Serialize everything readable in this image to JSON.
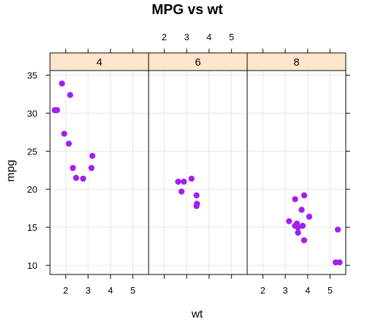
{
  "chart_data": {
    "type": "scatter",
    "title": "MPG vs wt",
    "xlabel": "wt",
    "ylabel": "mpg",
    "xlim": [
      1.3,
      5.7
    ],
    "ylim": [
      8.8,
      35.6
    ],
    "x_ticks": [
      2,
      3,
      4,
      5
    ],
    "y_ticks": [
      10,
      15,
      20,
      25,
      30,
      35
    ],
    "grid": true,
    "point_color": "#a020f0",
    "strip_color": "#ffe5cc",
    "panels": [
      {
        "label": "4",
        "points": [
          {
            "x": 1.615,
            "y": 30.4
          },
          {
            "x": 1.835,
            "y": 33.9
          },
          {
            "x": 1.513,
            "y": 30.4
          },
          {
            "x": 1.935,
            "y": 27.3
          },
          {
            "x": 2.14,
            "y": 26.0
          },
          {
            "x": 2.2,
            "y": 32.4
          },
          {
            "x": 2.32,
            "y": 22.8
          },
          {
            "x": 2.465,
            "y": 21.5
          },
          {
            "x": 2.78,
            "y": 21.4
          },
          {
            "x": 3.15,
            "y": 22.8
          },
          {
            "x": 3.19,
            "y": 24.4
          }
        ]
      },
      {
        "label": "6",
        "points": [
          {
            "x": 2.62,
            "y": 21.0
          },
          {
            "x": 2.77,
            "y": 19.7
          },
          {
            "x": 2.875,
            "y": 21.0
          },
          {
            "x": 3.215,
            "y": 21.4
          },
          {
            "x": 3.44,
            "y": 19.2
          },
          {
            "x": 3.44,
            "y": 17.8
          },
          {
            "x": 3.46,
            "y": 18.1
          }
        ]
      },
      {
        "label": "8",
        "points": [
          {
            "x": 3.17,
            "y": 15.8
          },
          {
            "x": 3.44,
            "y": 18.7
          },
          {
            "x": 3.435,
            "y": 15.2
          },
          {
            "x": 3.52,
            "y": 15.5
          },
          {
            "x": 3.57,
            "y": 14.3
          },
          {
            "x": 3.57,
            "y": 15.0
          },
          {
            "x": 3.73,
            "y": 17.3
          },
          {
            "x": 3.78,
            "y": 15.2
          },
          {
            "x": 3.84,
            "y": 13.3
          },
          {
            "x": 3.845,
            "y": 19.2
          },
          {
            "x": 4.07,
            "y": 16.4
          },
          {
            "x": 5.25,
            "y": 10.4
          },
          {
            "x": 5.345,
            "y": 14.7
          },
          {
            "x": 5.424,
            "y": 10.4
          }
        ]
      }
    ]
  }
}
